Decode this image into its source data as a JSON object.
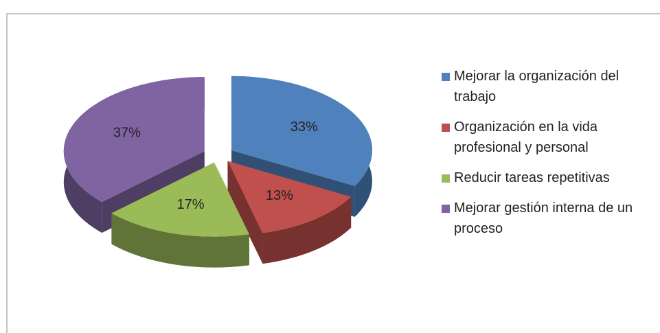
{
  "chart_data": {
    "type": "pie",
    "categories": [
      "Mejorar la organización del trabajo",
      "Organización en la vida profesional y personal",
      "Reducir tareas repetitivas",
      "Mejorar gestión interna de un proceso"
    ],
    "values": [
      33,
      13,
      17,
      37
    ],
    "value_labels": [
      "33%",
      "13%",
      "17%",
      "37%"
    ],
    "colors": [
      "#4f81bd",
      "#c0504d",
      "#9bbb59",
      "#8064a2"
    ],
    "legend": "right"
  }
}
